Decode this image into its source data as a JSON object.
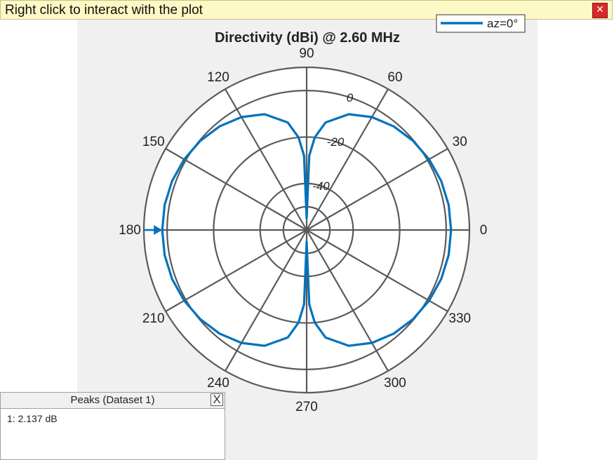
{
  "banner": {
    "text": "Right click to interact with the plot",
    "close_glyph": "✕"
  },
  "peaks_panel": {
    "title": "Peaks (Dataset 1)",
    "close_glyph": "X",
    "entries": [
      "1: 2.137 dB"
    ]
  },
  "colors": {
    "series": "#0072bd",
    "grid": "#5a5a5a",
    "background": "#f0f0f0"
  },
  "chart_data": {
    "type": "line",
    "title": "Directivity (dBi) @ 2.60 MHz",
    "legend": [
      "az=0°"
    ],
    "angle_ticks": [
      "0",
      "30",
      "60",
      "90",
      "120",
      "150",
      "180",
      "210",
      "240",
      "270",
      "300",
      "330"
    ],
    "radial_ticks": [
      "0",
      "-20",
      "-40"
    ],
    "radial_values": [
      0,
      -20,
      -40
    ],
    "rlim": [
      -60,
      10
    ],
    "peak_marker_angle_deg": 180,
    "series": [
      {
        "name": "az=0°",
        "angle_deg": [
          0,
          10,
          20,
          30,
          40,
          50,
          60,
          70,
          80,
          85,
          88,
          90,
          92,
          95,
          100,
          110,
          120,
          130,
          140,
          150,
          160,
          170,
          180,
          190,
          200,
          210,
          220,
          230,
          240,
          250,
          260,
          265,
          268,
          270,
          272,
          275,
          280,
          290,
          300,
          310,
          320,
          330,
          340,
          350,
          360
        ],
        "directivity_dbi": [
          2.1,
          2.0,
          1.6,
          0.8,
          -0.3,
          -1.8,
          -3.9,
          -7.0,
          -13.0,
          -20.0,
          -28.0,
          -55.0,
          -28.0,
          -20.0,
          -13.0,
          -7.0,
          -3.9,
          -1.8,
          -0.3,
          0.8,
          1.6,
          2.0,
          2.1,
          2.0,
          1.6,
          0.8,
          -0.3,
          -1.8,
          -3.9,
          -7.0,
          -13.0,
          -20.0,
          -28.0,
          -55.0,
          -28.0,
          -20.0,
          -13.0,
          -7.0,
          -3.9,
          -1.8,
          -0.3,
          0.8,
          1.6,
          2.0,
          2.1
        ]
      }
    ]
  }
}
